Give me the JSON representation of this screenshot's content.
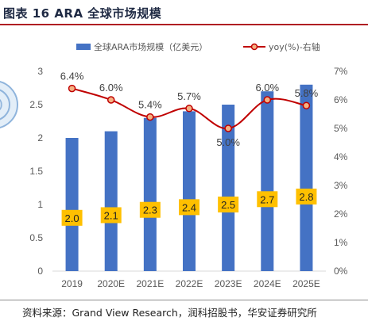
{
  "header": {
    "title": "图表 16 ARA 全球市场规模"
  },
  "footer": {
    "source": "资料来源：Grand View Research，润科招股书，华安证券研究所"
  },
  "colors": {
    "bar": "#4472c4",
    "line": "#c00000",
    "marker_fill": "#f4b183",
    "label_box": "#ffc000",
    "title_rule": "#b01e23"
  },
  "chart_data": {
    "type": "bar",
    "categories": [
      "2019",
      "2020E",
      "2021E",
      "2022E",
      "2023E",
      "2024E",
      "2025E"
    ],
    "series": [
      {
        "name": "全球ARA市场规模（亿美元）",
        "type": "bar",
        "axis": "left",
        "values": [
          2.0,
          2.1,
          2.3,
          2.4,
          2.5,
          2.7,
          2.8
        ],
        "labels": [
          "2.0",
          "2.1",
          "2.3",
          "2.4",
          "2.5",
          "2.7",
          "2.8"
        ]
      },
      {
        "name": "yoy(%)-右轴",
        "type": "line",
        "axis": "right",
        "values": [
          6.4,
          6.0,
          5.4,
          5.7,
          5.0,
          6.0,
          5.8
        ],
        "labels": [
          "6.4%",
          "6.0%",
          "5.4%",
          "5.7%",
          "5.0%",
          "6.0%",
          "5.8%"
        ]
      }
    ],
    "y_left": {
      "ylim": [
        0,
        3
      ],
      "ticks": [
        "0",
        "0.5",
        "1",
        "1.5",
        "2",
        "2.5",
        "3"
      ]
    },
    "y_right": {
      "ylim": [
        0,
        7
      ],
      "ticks": [
        "0%",
        "1%",
        "2%",
        "3%",
        "4%",
        "5%",
        "6%",
        "7%"
      ]
    },
    "legend_position": "top",
    "grid": false
  }
}
